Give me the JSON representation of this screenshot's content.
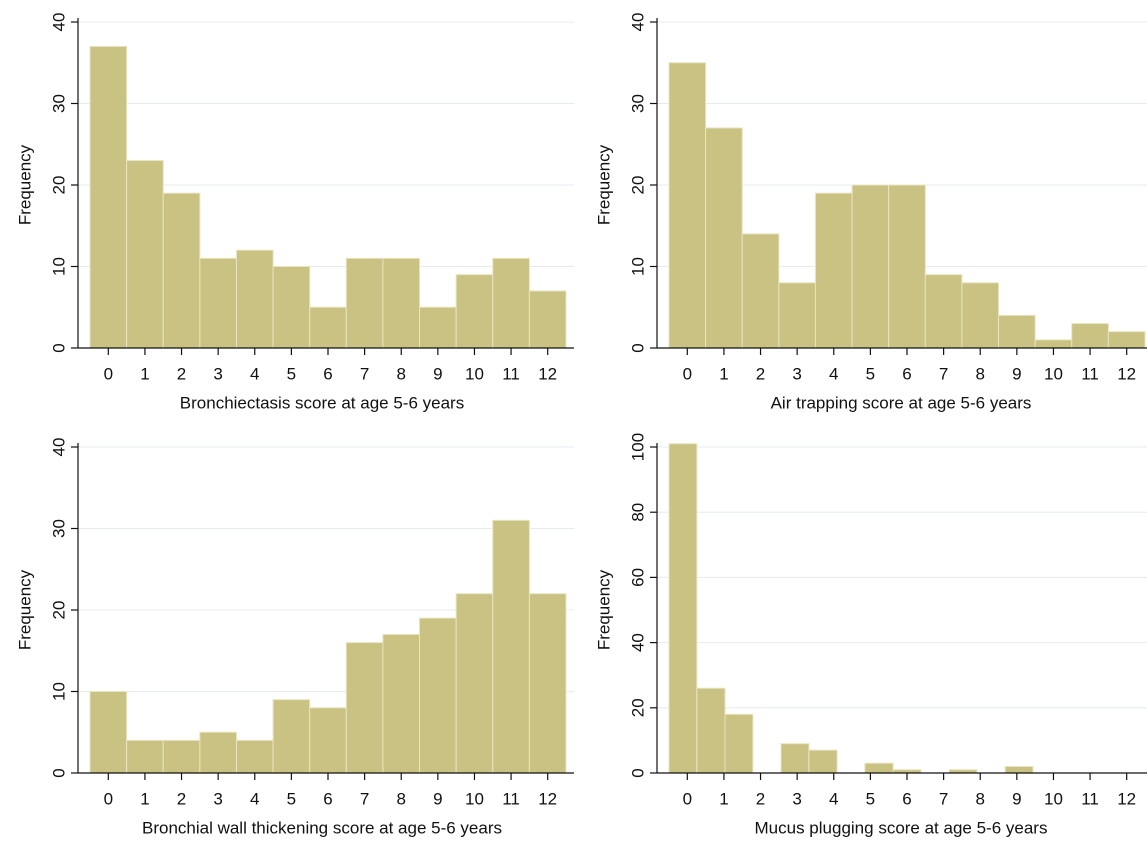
{
  "chart_data": [
    {
      "type": "histogram",
      "xlabel": "Bronchiectasis score at age 5-6 years",
      "ylabel": "Frequency",
      "bins": [
        -0.5,
        0.5,
        1.5,
        2.5,
        3.5,
        4.5,
        5.5,
        6.5,
        7.5,
        8.5,
        9.5,
        10.5,
        11.5,
        12.5
      ],
      "values": [
        37,
        23,
        19,
        11,
        12,
        10,
        5,
        11,
        11,
        5,
        9,
        11,
        7
      ],
      "xlim": [
        -0.5,
        12.5
      ],
      "xticks": [
        0,
        1,
        2,
        3,
        4,
        5,
        6,
        7,
        8,
        9,
        10,
        11,
        12
      ],
      "ylim": [
        0,
        40
      ],
      "yticks": [
        0,
        10,
        20,
        30,
        40
      ],
      "color": "#c9c282",
      "grid": true
    },
    {
      "type": "histogram",
      "xlabel": "Air trapping score at age 5-6 years",
      "ylabel": "Frequency",
      "bins": [
        -0.5,
        0.5,
        1.5,
        2.5,
        3.5,
        4.5,
        5.5,
        6.5,
        7.5,
        8.5,
        9.5,
        10.5,
        11.5,
        12.5
      ],
      "values": [
        35,
        27,
        14,
        8,
        19,
        20,
        20,
        9,
        8,
        4,
        1,
        3,
        2
      ],
      "xlim": [
        -0.5,
        12.5
      ],
      "xticks": [
        0,
        1,
        2,
        3,
        4,
        5,
        6,
        7,
        8,
        9,
        10,
        11,
        12
      ],
      "ylim": [
        0,
        40
      ],
      "yticks": [
        0,
        10,
        20,
        30,
        40
      ],
      "color": "#c9c282",
      "grid": true
    },
    {
      "type": "histogram",
      "xlabel": "Bronchial wall thickening score at age 5-6 years",
      "ylabel": "Frequency",
      "bins": [
        -0.5,
        0.5,
        1.5,
        2.5,
        3.5,
        4.5,
        5.5,
        6.5,
        7.5,
        8.5,
        9.5,
        10.5,
        11.5,
        12.5
      ],
      "values": [
        10,
        4,
        4,
        5,
        4,
        9,
        8,
        16,
        17,
        19,
        22,
        31,
        22
      ],
      "xlim": [
        -0.5,
        12.5
      ],
      "xticks": [
        0,
        1,
        2,
        3,
        4,
        5,
        6,
        7,
        8,
        9,
        10,
        11,
        12
      ],
      "ylim": [
        0,
        40
      ],
      "yticks": [
        0,
        10,
        20,
        30,
        40
      ],
      "color": "#c9c282",
      "grid": true
    },
    {
      "type": "histogram",
      "xlabel": "Mucus plugging score at age 5-6 years",
      "ylabel": "Frequency",
      "bins": [
        -0.5,
        0.26,
        1.03,
        1.79,
        2.56,
        3.32,
        4.09,
        4.85,
        5.62,
        6.38,
        7.15,
        7.91,
        8.68,
        9.44,
        10.21,
        10.97,
        11.74,
        12.5
      ],
      "values": [
        101,
        26,
        18,
        0,
        9,
        7,
        0,
        3,
        1,
        0,
        1,
        0,
        2,
        0,
        0,
        0,
        0
      ],
      "xlim": [
        -0.5,
        12.5
      ],
      "xticks": [
        0,
        1,
        2,
        3,
        4,
        5,
        6,
        7,
        8,
        9,
        10,
        11,
        12
      ],
      "ylim": [
        0,
        100
      ],
      "yticks": [
        0,
        20,
        40,
        60,
        80,
        100
      ],
      "color": "#c9c282",
      "grid": true
    }
  ]
}
